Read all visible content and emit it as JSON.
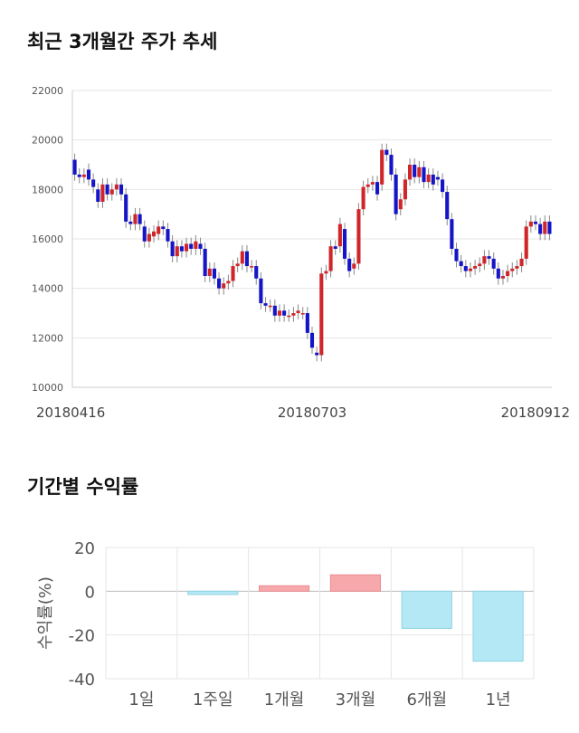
{
  "sections": {
    "price_title": "최근 3개월간 주가 추세",
    "returns_title": "기간별 수익률"
  },
  "colors": {
    "up": "#d0262a",
    "down": "#1515c8",
    "wick": "#888888",
    "bar_pos": "#f7a8ab",
    "bar_neg": "#b3e8f4",
    "grid": "#e6e6e6"
  },
  "chart_data": [
    {
      "type": "candlestick",
      "title": "최근 3개월간 주가 추세",
      "ylim": [
        10000,
        22000
      ],
      "yticks": [
        10000,
        12000,
        14000,
        16000,
        18000,
        20000,
        22000
      ],
      "x_labels": [
        "20180416",
        "20180703",
        "20180912"
      ],
      "x_label_index": [
        0,
        51,
        99
      ],
      "candles": [
        [
          19200,
          18600
        ],
        [
          18600,
          18500
        ],
        [
          18500,
          18600
        ],
        [
          18800,
          18400
        ],
        [
          18400,
          18100
        ],
        [
          18000,
          17500
        ],
        [
          17500,
          18200
        ],
        [
          18200,
          17800
        ],
        [
          17800,
          18000
        ],
        [
          18000,
          18200
        ],
        [
          18200,
          17800
        ],
        [
          17800,
          16700
        ],
        [
          16700,
          16600
        ],
        [
          16600,
          17000
        ],
        [
          17000,
          16600
        ],
        [
          16500,
          15900
        ],
        [
          15900,
          16200
        ],
        [
          16100,
          16300
        ],
        [
          16200,
          16500
        ],
        [
          16500,
          16400
        ],
        [
          16400,
          15900
        ],
        [
          15900,
          15300
        ],
        [
          15300,
          15700
        ],
        [
          15700,
          15500
        ],
        [
          15500,
          15800
        ],
        [
          15800,
          15600
        ],
        [
          15600,
          15900
        ],
        [
          15800,
          15600
        ],
        [
          15600,
          14500
        ],
        [
          14500,
          14800
        ],
        [
          14800,
          14400
        ],
        [
          14400,
          14000
        ],
        [
          14000,
          14200
        ],
        [
          14200,
          14300
        ],
        [
          14300,
          14900
        ],
        [
          14900,
          15000
        ],
        [
          15000,
          15500
        ],
        [
          15500,
          14900
        ],
        [
          14900,
          14900
        ],
        [
          14900,
          14400
        ],
        [
          14400,
          13400
        ],
        [
          13400,
          13300
        ],
        [
          13300,
          13300
        ],
        [
          13300,
          12900
        ],
        [
          12900,
          13100
        ],
        [
          13100,
          12900
        ],
        [
          12900,
          12900
        ],
        [
          12900,
          13000
        ],
        [
          13000,
          13100
        ],
        [
          13000,
          13000
        ],
        [
          13000,
          12200
        ],
        [
          12200,
          11600
        ],
        [
          11400,
          11300
        ],
        [
          11300,
          14600
        ],
        [
          14600,
          14700
        ],
        [
          14700,
          15700
        ],
        [
          15700,
          15600
        ],
        [
          15700,
          16600
        ],
        [
          16400,
          15200
        ],
        [
          15200,
          14700
        ],
        [
          14800,
          15000
        ],
        [
          15000,
          17200
        ],
        [
          17200,
          18100
        ],
        [
          18100,
          18200
        ],
        [
          18200,
          18300
        ],
        [
          18300,
          17800
        ],
        [
          18200,
          19600
        ],
        [
          19600,
          19400
        ],
        [
          19400,
          18600
        ],
        [
          18600,
          17000
        ],
        [
          17200,
          17600
        ],
        [
          17600,
          18400
        ],
        [
          18400,
          19000
        ],
        [
          19000,
          18500
        ],
        [
          18500,
          18900
        ],
        [
          18900,
          18300
        ],
        [
          18300,
          18600
        ],
        [
          18600,
          18200
        ],
        [
          18500,
          18400
        ],
        [
          18400,
          17900
        ],
        [
          17900,
          16800
        ],
        [
          16800,
          15600
        ],
        [
          15600,
          15100
        ],
        [
          15100,
          14900
        ],
        [
          14900,
          14700
        ],
        [
          14700,
          14800
        ],
        [
          14800,
          14900
        ],
        [
          14900,
          15000
        ],
        [
          15000,
          15300
        ],
        [
          15300,
          15200
        ],
        [
          15200,
          14800
        ],
        [
          14800,
          14400
        ],
        [
          14400,
          14500
        ],
        [
          14500,
          14700
        ],
        [
          14700,
          14800
        ],
        [
          14800,
          14900
        ],
        [
          14900,
          15200
        ],
        [
          15200,
          16500
        ],
        [
          16500,
          16700
        ],
        [
          16700,
          16600
        ],
        [
          16600,
          16200
        ],
        [
          16200,
          16700
        ],
        [
          16700,
          16200
        ]
      ]
    },
    {
      "type": "bar",
      "title": "기간별 수익률",
      "ylabel": "수익률(%)",
      "ylim": [
        -40,
        20
      ],
      "yticks": [
        20,
        0,
        -20,
        -40
      ],
      "categories": [
        "1일",
        "1주일",
        "1개월",
        "3개월",
        "6개월",
        "1년"
      ],
      "values": [
        0,
        -1.5,
        2.5,
        7.5,
        -17,
        -32
      ]
    }
  ]
}
